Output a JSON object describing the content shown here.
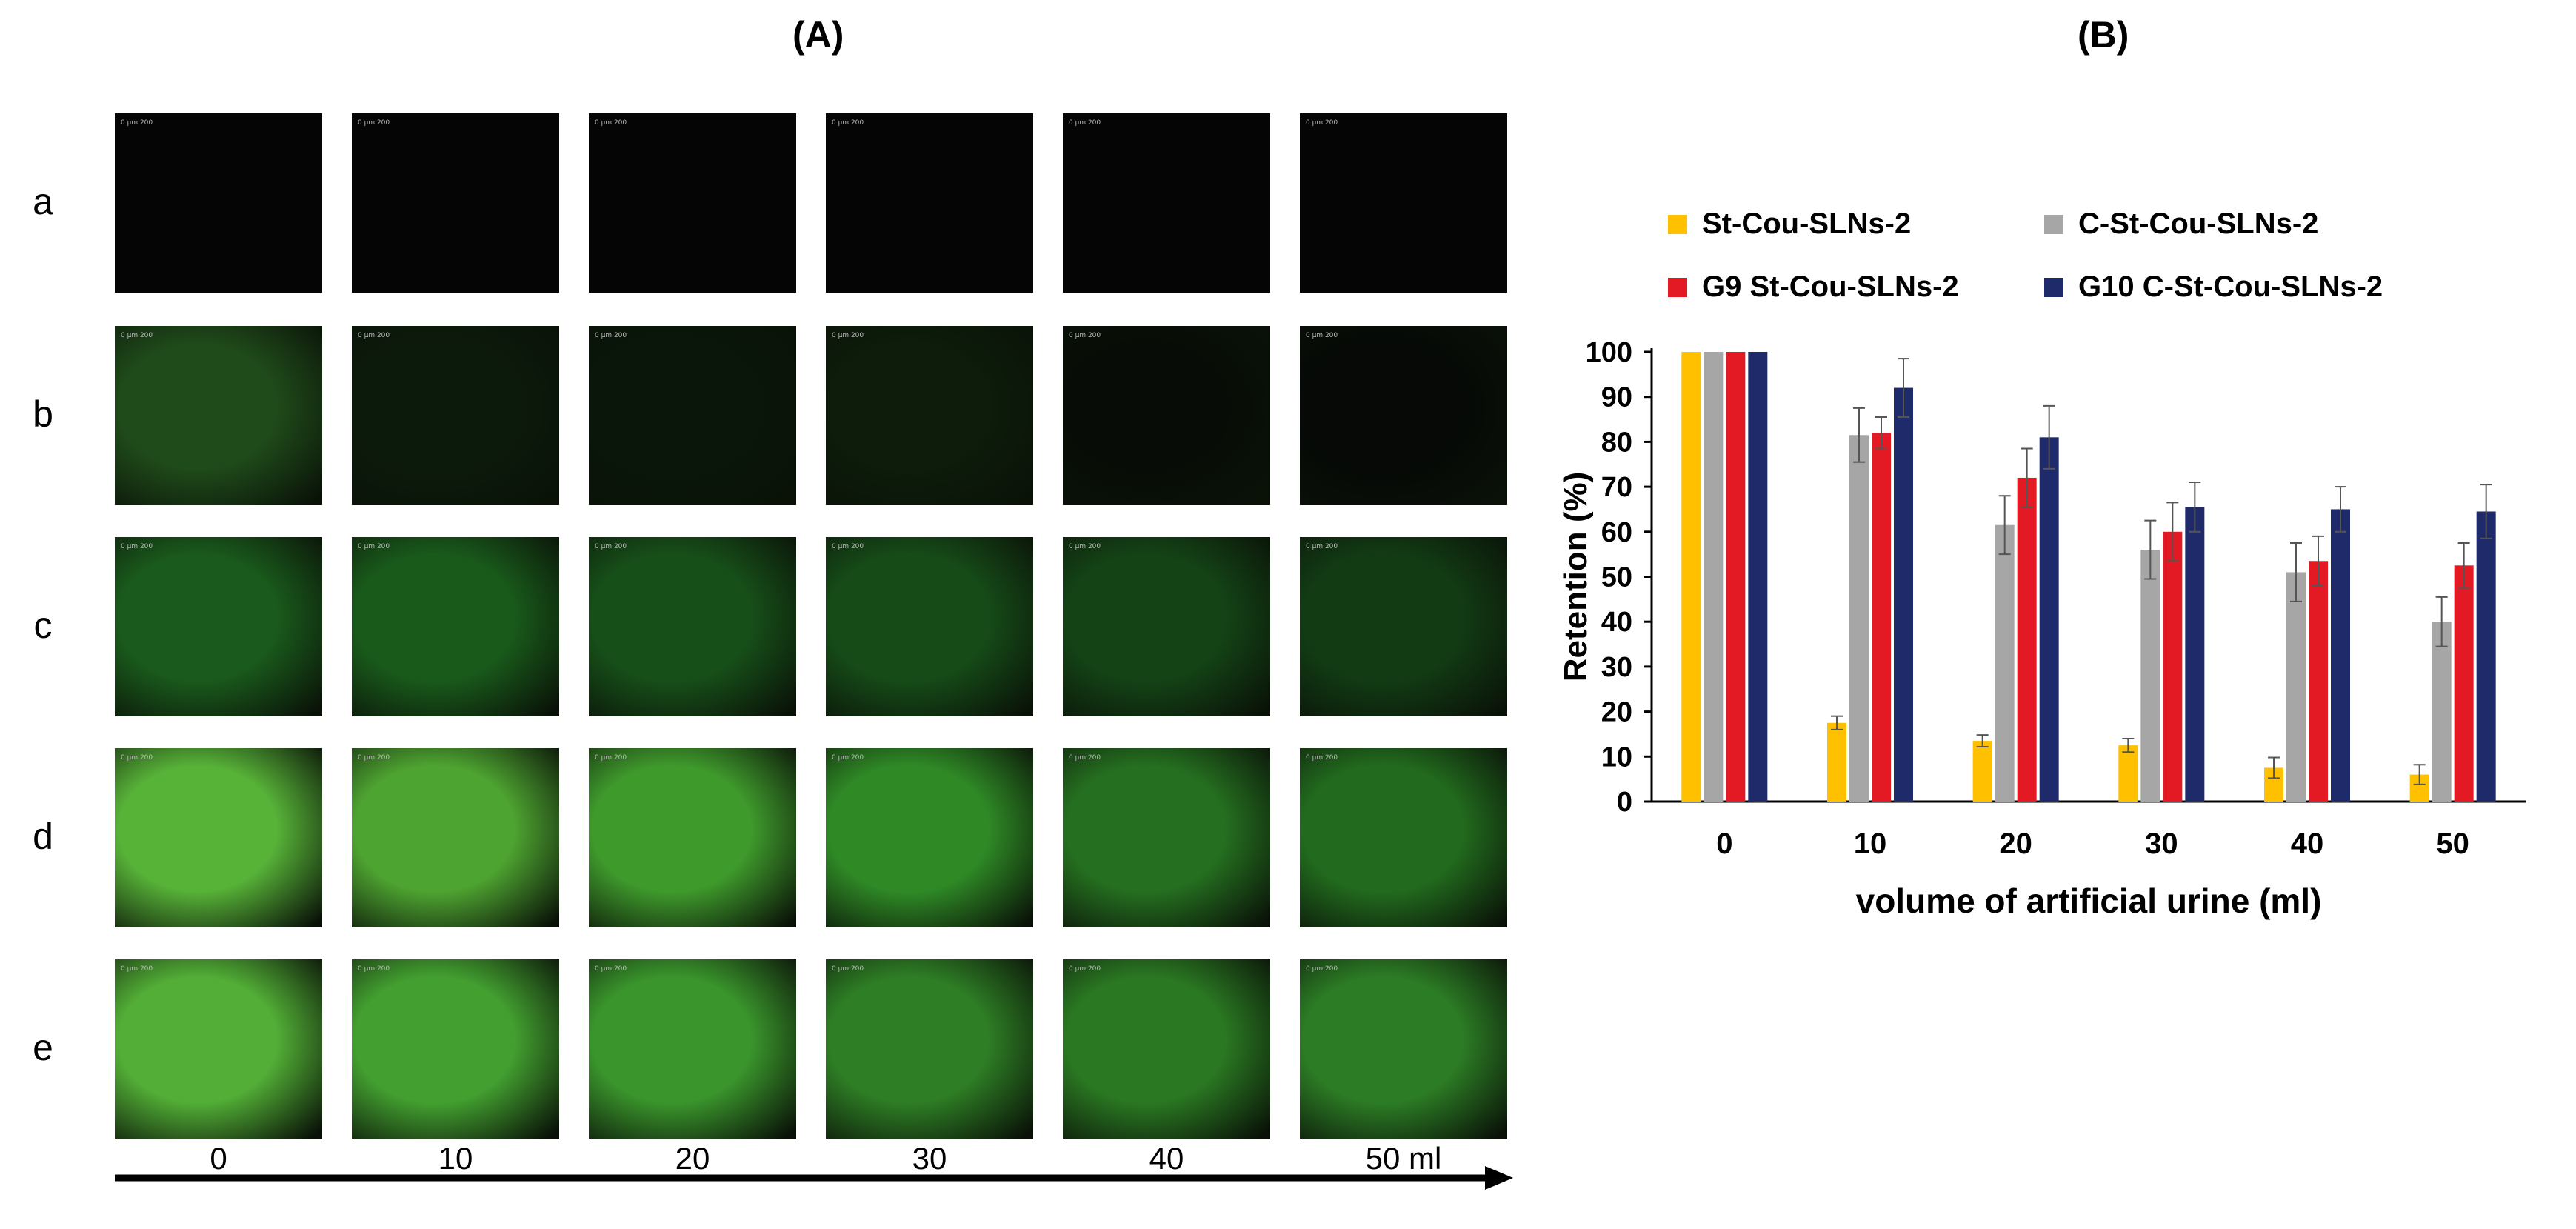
{
  "panels": {
    "a_label": "(A)",
    "b_label": "(B)"
  },
  "micrographs": {
    "rows": [
      {
        "label": "a",
        "tone": "#050505"
      },
      {
        "label": "b",
        "tone": "#0b1a08"
      },
      {
        "label": "c",
        "tone": "#133d15"
      },
      {
        "label": "d",
        "tone": "#2a7a22"
      },
      {
        "label": "e",
        "tone": "#2f8a24"
      }
    ],
    "row_tones": [
      [
        "#050505",
        "#050505",
        "#050505",
        "#050505",
        "#050505",
        "#050505"
      ],
      [
        "#1f4a1a",
        "#0c1a0b",
        "#0a1609",
        "#0d1c0b",
        "#070d06",
        "#060906"
      ],
      [
        "#1a5a1c",
        "#195a1b",
        "#174f19",
        "#164b18",
        "#144316",
        "#123b14"
      ],
      [
        "#57b238",
        "#4ea431",
        "#3f9a2c",
        "#2f8a26",
        "#256f20",
        "#226b1e"
      ],
      [
        "#52ae36",
        "#43a030",
        "#3a952c",
        "#2e7e25",
        "#2a7822",
        "#2c7c25"
      ]
    ],
    "volumes": [
      "0",
      "10",
      "20",
      "30",
      "40",
      "50 ml"
    ],
    "scale_text": "0     µm 200"
  },
  "chart_data": {
    "type": "bar",
    "categories": [
      "0",
      "10",
      "20",
      "30",
      "40",
      "50"
    ],
    "series": [
      {
        "name": "St-Cou-SLNs-2",
        "color": "#ffc000",
        "values": [
          100,
          17.5,
          13.5,
          12.5,
          7.5,
          6
        ],
        "errors": [
          0,
          1.5,
          1.3,
          1.5,
          2.3,
          2.2
        ]
      },
      {
        "name": "C-St-Cou-SLNs-2",
        "color": "#a6a6a6",
        "values": [
          100,
          81.5,
          61.5,
          56,
          51,
          40
        ],
        "errors": [
          0,
          6,
          6.5,
          6.5,
          6.5,
          5.5
        ]
      },
      {
        "name": "G9 St-Cou-SLNs-2",
        "color": "#e31a24",
        "values": [
          100,
          82,
          72,
          60,
          53.5,
          52.5
        ],
        "errors": [
          0,
          3.5,
          6.5,
          6.5,
          5.5,
          5
        ]
      },
      {
        "name": "G10 C-St-Cou-SLNs-2",
        "color": "#1f2a6b",
        "values": [
          100,
          92,
          81,
          65.5,
          65,
          64.5
        ],
        "errors": [
          0,
          6.5,
          7,
          5.5,
          5,
          6
        ]
      }
    ],
    "xlabel": "volume of artificial urine (ml)",
    "ylabel": "Retention (%)",
    "ylim": [
      0,
      100
    ],
    "yticks": [
      "0",
      "10",
      "20",
      "30",
      "40",
      "50",
      "60",
      "70",
      "80",
      "90",
      "100"
    ],
    "grid": false,
    "legend": "top"
  }
}
